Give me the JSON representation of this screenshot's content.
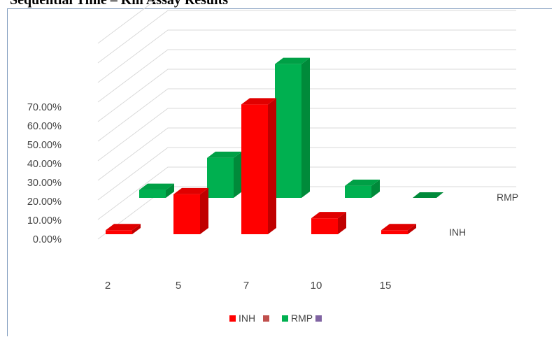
{
  "header": {
    "caption": "Sequential Time – Kill Assay Results"
  },
  "chart_data": {
    "type": "bar",
    "title": "",
    "xlabel": "",
    "ylabel": "",
    "categories": [
      "2",
      "5",
      "7",
      "10",
      "15"
    ],
    "ylim": [
      0,
      0.7
    ],
    "yticks": [
      "0.00%",
      "10.00%",
      "20.00%",
      "30.00%",
      "40.00%",
      "50.00%",
      "60.00%",
      "70.00%"
    ],
    "series": [
      {
        "name": "INH",
        "values": [
          0.02,
          0.2,
          0.65,
          0.08,
          0.02
        ],
        "color": "#ff0000",
        "side": "#c00000",
        "top": "#e00000"
      },
      {
        "name": "RMP",
        "values": [
          0.04,
          0.2,
          0.67,
          0.06,
          0.0
        ],
        "color": "#00b050",
        "side": "#008a3a",
        "top": "#00a046"
      }
    ],
    "legend": {
      "position": "bottom",
      "items": [
        {
          "label": "INH",
          "color": "#ff0000"
        },
        {
          "label": "",
          "color": "#c0504d"
        },
        {
          "label": "RMP",
          "color": "#00b050"
        },
        {
          "label": "",
          "color": "#8064a2"
        }
      ]
    },
    "grid": true,
    "style": "3d-column"
  }
}
